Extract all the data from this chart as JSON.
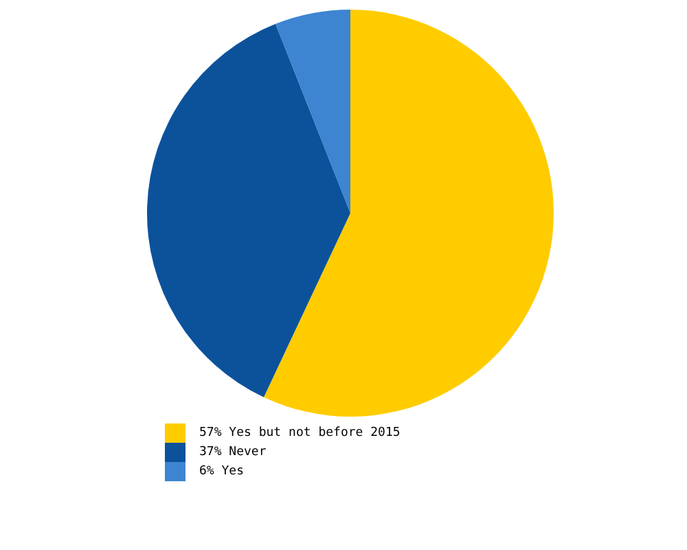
{
  "chart_data": {
    "type": "pie",
    "categories": [
      "57% Yes but not before 2015",
      "37% Never",
      "6% Yes"
    ],
    "values": [
      57,
      37,
      6
    ],
    "colors": [
      "#ffcc00",
      "#0b529b",
      "#3d85d1"
    ],
    "legend": "bottom"
  }
}
